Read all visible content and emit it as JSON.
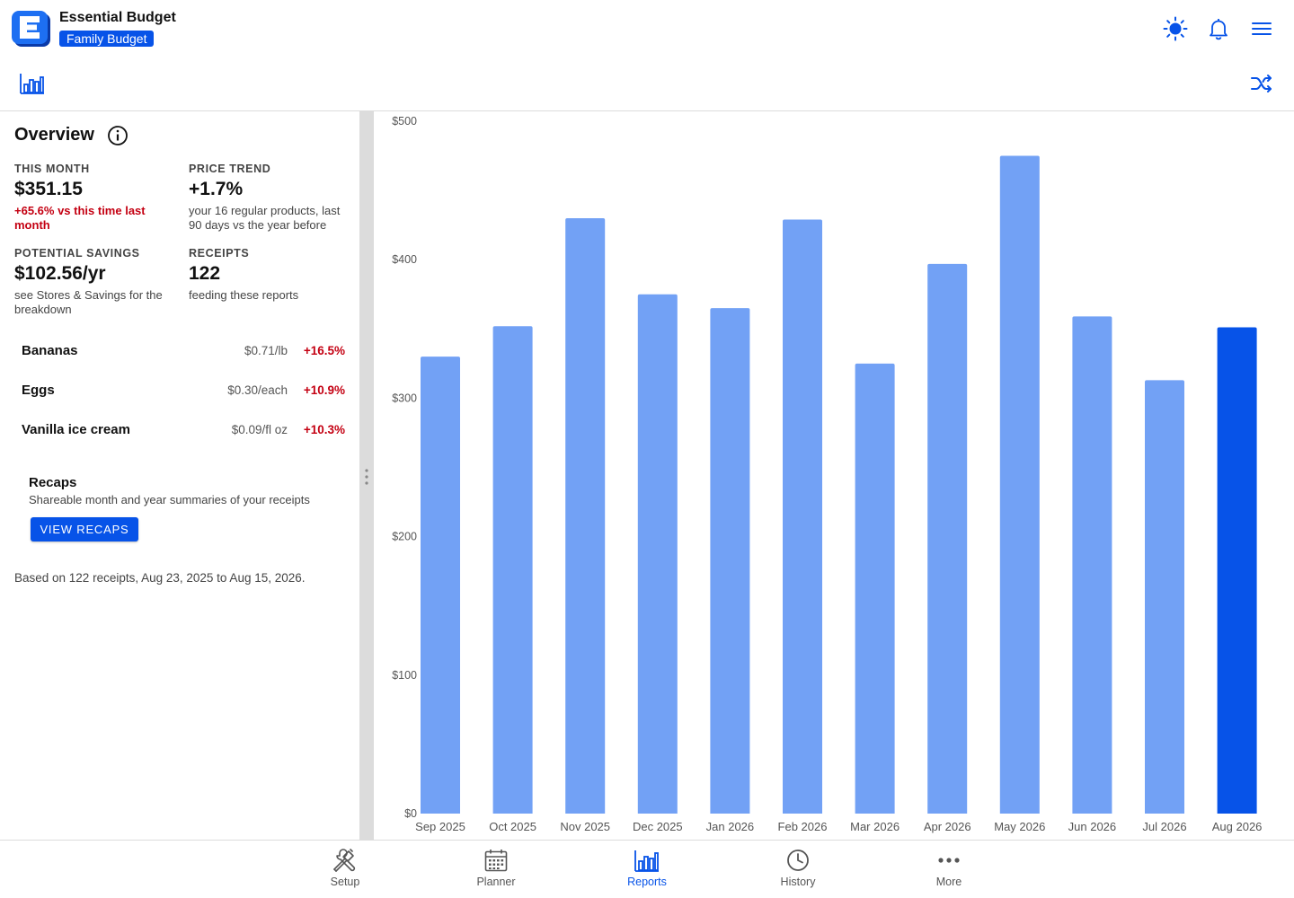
{
  "header": {
    "app_name": "Essential Budget",
    "budget_name": "Family Budget",
    "icons": [
      "brightness-icon",
      "bell-icon",
      "menu-icon"
    ]
  },
  "subheader": {
    "icons": [
      "bar-chart-icon",
      "shuffle-icon"
    ]
  },
  "overview": {
    "title": "Overview",
    "stats": [
      {
        "label": "THIS MONTH",
        "value": "$351.15",
        "note": "+65.6% vs this time last month",
        "note_style": "negative"
      },
      {
        "label": "PRICE TREND",
        "value": "+1.7%",
        "note": "your 16 regular products, last 90 days vs the year before",
        "note_style": "normal"
      },
      {
        "label": "POTENTIAL SAVINGS",
        "value": "$102.56/yr",
        "note": "see Stores & Savings for the breakdown",
        "note_style": "normal"
      },
      {
        "label": "RECEIPTS",
        "value": "122",
        "note": "feeding these reports",
        "note_style": "normal"
      }
    ],
    "products": [
      {
        "name": "Bananas",
        "price": "$0.71/lb",
        "change": "+16.5%"
      },
      {
        "name": "Eggs",
        "price": "$0.30/each",
        "change": "+10.9%"
      },
      {
        "name": "Vanilla ice cream",
        "price": "$0.09/fl oz",
        "change": "+10.3%"
      }
    ],
    "recaps": {
      "title": "Recaps",
      "description": "Shareable month and year summaries of your receipts",
      "button_label": "VIEW RECAPS"
    },
    "based_on": "Based on 122 receipts, Aug 23, 2025 to Aug 15, 2026."
  },
  "colors": {
    "accent": "#0753e8",
    "bar": "#72a1f5",
    "bar_current": "#0753e8",
    "negative": "#c40012"
  },
  "chart_data": {
    "type": "bar",
    "categories": [
      "Sep 2025",
      "Oct 2025",
      "Nov 2025",
      "Dec 2025",
      "Jan 2026",
      "Feb 2026",
      "Mar 2026",
      "Apr 2026",
      "May 2026",
      "Jun 2026",
      "Jul 2026",
      "Aug 2026"
    ],
    "values": [
      330,
      352,
      430,
      375,
      365,
      429,
      325,
      397,
      475,
      359,
      313,
      351.15
    ],
    "highlight_index": 11,
    "ylim": [
      0,
      500
    ],
    "yticks": [
      0,
      100,
      200,
      300,
      400,
      500
    ],
    "ytick_labels": [
      "$0",
      "$100",
      "$200",
      "$300",
      "$400",
      "$500"
    ],
    "title": "",
    "xlabel": "",
    "ylabel": "",
    "grid": false,
    "legend": "none"
  },
  "bottom_nav": [
    {
      "label": "Setup",
      "icon": "tools-icon",
      "active": false
    },
    {
      "label": "Planner",
      "icon": "calendar-icon",
      "active": false
    },
    {
      "label": "Reports",
      "icon": "bar-chart-icon",
      "active": true
    },
    {
      "label": "History",
      "icon": "clock-icon",
      "active": false
    },
    {
      "label": "More",
      "icon": "more-dots-icon",
      "active": false
    }
  ]
}
